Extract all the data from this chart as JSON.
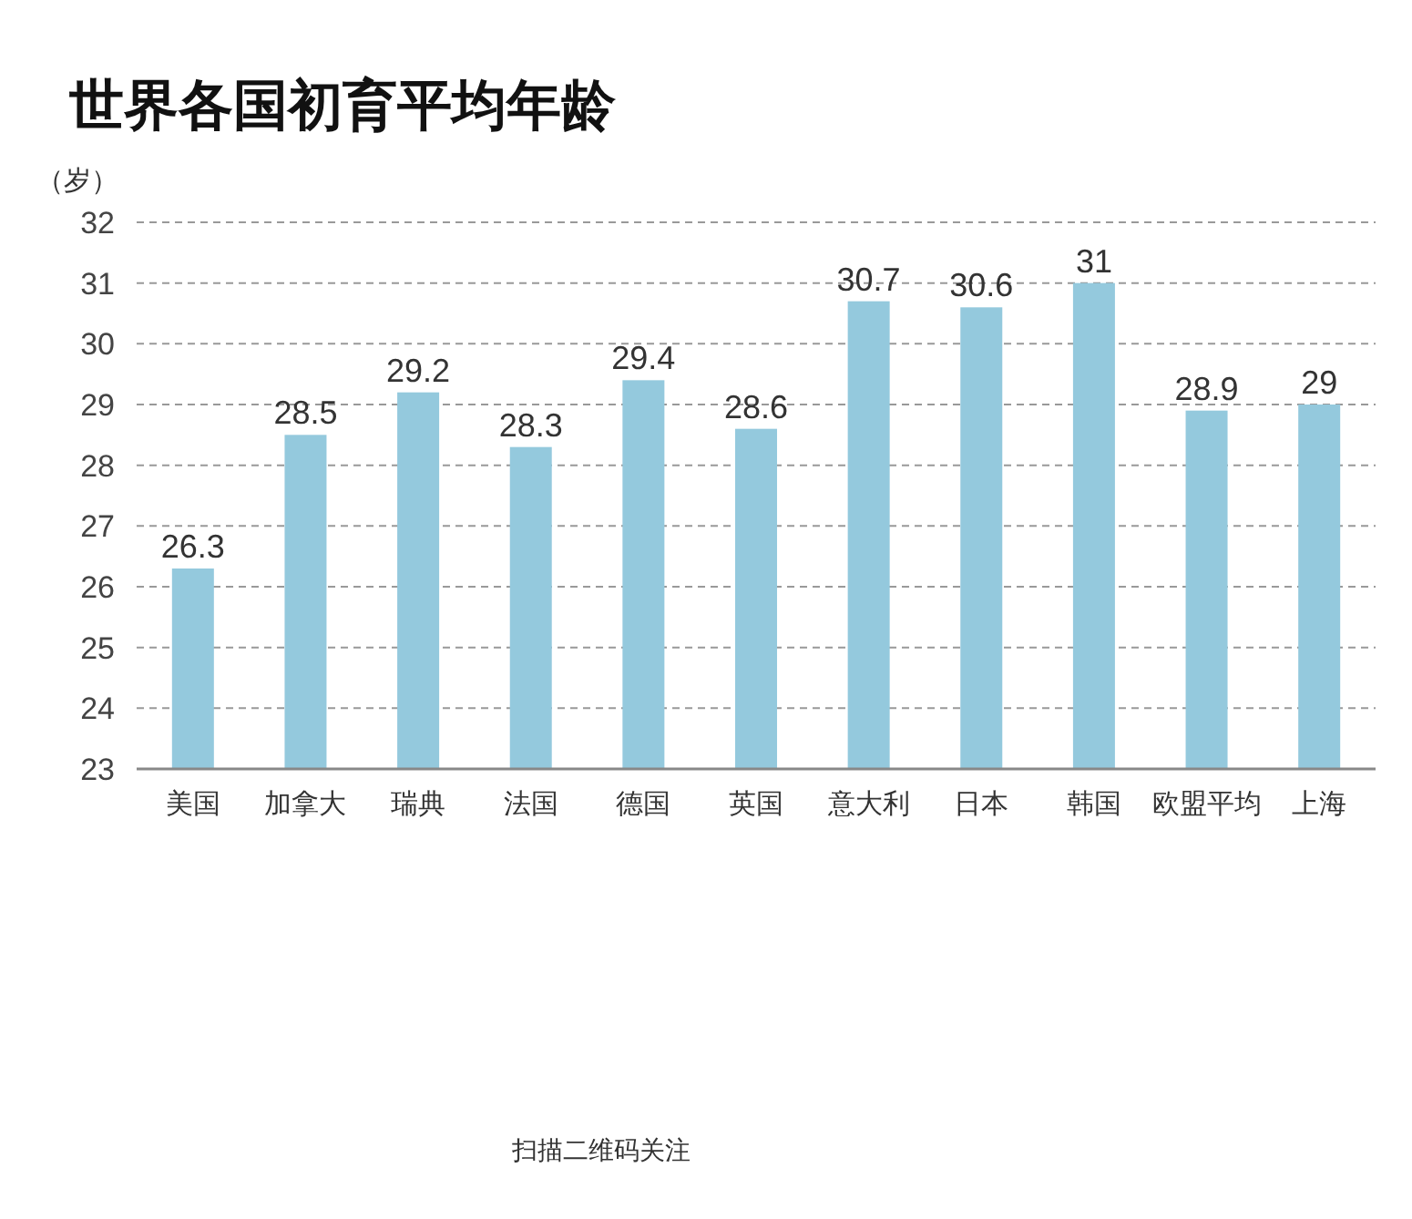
{
  "chart_data": {
    "type": "bar",
    "title": "世界各国初育平均年龄",
    "ylabel": "（岁）",
    "categories": [
      "美国",
      "加拿大",
      "瑞典",
      "法国",
      "德国",
      "英国",
      "意大利",
      "日本",
      "韩国",
      "欧盟平均",
      "上海"
    ],
    "values": [
      26.3,
      28.5,
      29.2,
      28.3,
      29.4,
      28.6,
      30.7,
      30.6,
      31,
      28.9,
      29
    ],
    "color": "#94c9dd",
    "ylim": [
      23,
      32
    ],
    "yticks": [
      23,
      24,
      25,
      26,
      27,
      28,
      29,
      30,
      31,
      32
    ],
    "grid": "y",
    "data_labels": true,
    "annotations": [
      "扫描二维码关注"
    ]
  }
}
